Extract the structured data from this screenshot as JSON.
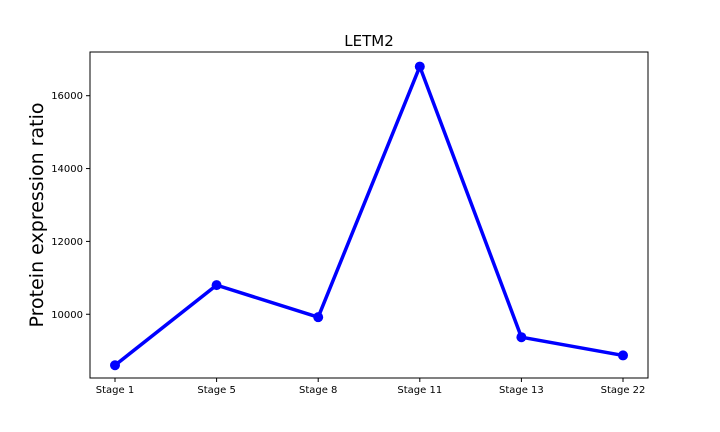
{
  "chart_data": {
    "type": "line",
    "title": "LETM2",
    "xlabel": "",
    "ylabel": "Protein expression ratio",
    "categories": [
      "Stage 1",
      "Stage 5",
      "Stage 8",
      "Stage 11",
      "Stage 13",
      "Stage 22"
    ],
    "series": [
      {
        "values": [
          8600,
          10800,
          9920,
          16800,
          9370,
          8870
        ],
        "color": "#0000ff"
      }
    ],
    "yticks": [
      10000,
      12000,
      14000,
      16000
    ],
    "ytick_labels": [
      "10000",
      "12000",
      "14000",
      "16000"
    ],
    "ylim": [
      8250,
      17200
    ],
    "grid": false,
    "legend": "none"
  }
}
